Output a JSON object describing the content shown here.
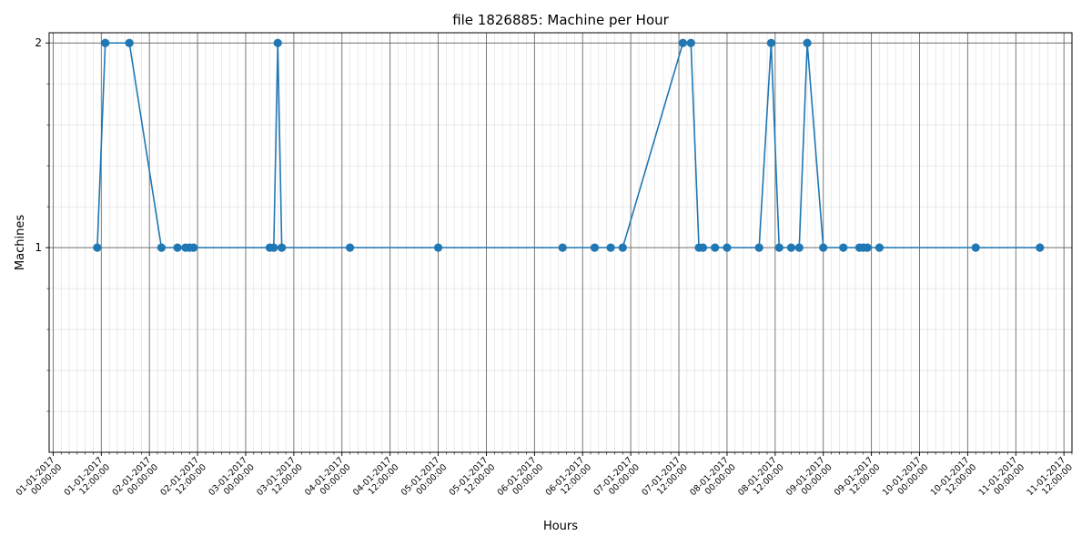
{
  "chart_data": {
    "type": "line",
    "title": "file 1826885: Machine per Hour",
    "xlabel": "Hours",
    "ylabel": "Machines",
    "x_range": [
      "2016-12-31 23:00",
      "2017-01-11 14:00"
    ],
    "y_range": [
      0,
      2.05
    ],
    "y_ticks": [
      1,
      2
    ],
    "y_tick_labels": [
      "1",
      "2"
    ],
    "x_major_ticks": [
      {
        "date": "01-01-2017",
        "time": "00:00:00"
      },
      {
        "date": "01-01-2017",
        "time": "12:00:00"
      },
      {
        "date": "02-01-2017",
        "time": "00:00:00"
      },
      {
        "date": "02-01-2017",
        "time": "12:00:00"
      },
      {
        "date": "03-01-2017",
        "time": "00:00:00"
      },
      {
        "date": "03-01-2017",
        "time": "12:00:00"
      },
      {
        "date": "04-01-2017",
        "time": "00:00:00"
      },
      {
        "date": "04-01-2017",
        "time": "12:00:00"
      },
      {
        "date": "05-01-2017",
        "time": "00:00:00"
      },
      {
        "date": "05-01-2017",
        "time": "12:00:00"
      },
      {
        "date": "06-01-2017",
        "time": "00:00:00"
      },
      {
        "date": "06-01-2017",
        "time": "12:00:00"
      },
      {
        "date": "07-01-2017",
        "time": "00:00:00"
      },
      {
        "date": "07-01-2017",
        "time": "12:00:00"
      },
      {
        "date": "08-01-2017",
        "time": "00:00:00"
      },
      {
        "date": "08-01-2017",
        "time": "12:00:00"
      },
      {
        "date": "09-01-2017",
        "time": "00:00:00"
      },
      {
        "date": "09-01-2017",
        "time": "12:00:00"
      },
      {
        "date": "10-01-2017",
        "time": "00:00:00"
      },
      {
        "date": "10-01-2017",
        "time": "12:00:00"
      },
      {
        "date": "11-01-2017",
        "time": "00:00:00"
      },
      {
        "date": "11-01-2017",
        "time": "12:00:00"
      }
    ],
    "grid": {
      "major": true,
      "minor": true
    },
    "line_color": "#1f77b4",
    "series": [
      {
        "points": [
          {
            "x": "2017-01-01 11:00",
            "y": 1
          },
          {
            "x": "2017-01-01 13:00",
            "y": 2
          },
          {
            "x": "2017-01-01 19:00",
            "y": 2
          },
          {
            "x": "2017-01-02 03:00",
            "y": 1
          },
          {
            "x": "2017-01-02 07:00",
            "y": 1
          },
          {
            "x": "2017-01-02 09:00",
            "y": 1
          },
          {
            "x": "2017-01-02 10:00",
            "y": 1
          },
          {
            "x": "2017-01-02 11:00",
            "y": 1
          },
          {
            "x": "2017-01-03 06:00",
            "y": 1
          },
          {
            "x": "2017-01-03 07:00",
            "y": 1
          },
          {
            "x": "2017-01-03 08:00",
            "y": 2
          },
          {
            "x": "2017-01-03 09:00",
            "y": 1
          },
          {
            "x": "2017-01-04 02:00",
            "y": 1
          },
          {
            "x": "2017-01-05 00:00",
            "y": 1
          },
          {
            "x": "2017-01-06 07:00",
            "y": 1
          },
          {
            "x": "2017-01-06 15:00",
            "y": 1
          },
          {
            "x": "2017-01-06 19:00",
            "y": 1
          },
          {
            "x": "2017-01-06 22:00",
            "y": 1
          },
          {
            "x": "2017-01-07 13:00",
            "y": 2
          },
          {
            "x": "2017-01-07 15:00",
            "y": 2
          },
          {
            "x": "2017-01-07 17:00",
            "y": 1
          },
          {
            "x": "2017-01-07 18:00",
            "y": 1
          },
          {
            "x": "2017-01-07 21:00",
            "y": 1
          },
          {
            "x": "2017-01-08 00:00",
            "y": 1
          },
          {
            "x": "2017-01-08 08:00",
            "y": 1
          },
          {
            "x": "2017-01-08 11:00",
            "y": 2
          },
          {
            "x": "2017-01-08 13:00",
            "y": 1
          },
          {
            "x": "2017-01-08 16:00",
            "y": 1
          },
          {
            "x": "2017-01-08 18:00",
            "y": 1
          },
          {
            "x": "2017-01-08 20:00",
            "y": 2
          },
          {
            "x": "2017-01-09 00:00",
            "y": 1
          },
          {
            "x": "2017-01-09 05:00",
            "y": 1
          },
          {
            "x": "2017-01-09 09:00",
            "y": 1
          },
          {
            "x": "2017-01-09 10:00",
            "y": 1
          },
          {
            "x": "2017-01-09 11:00",
            "y": 1
          },
          {
            "x": "2017-01-09 14:00",
            "y": 1
          },
          {
            "x": "2017-01-10 14:00",
            "y": 1
          },
          {
            "x": "2017-01-11 06:00",
            "y": 1
          }
        ]
      }
    ]
  }
}
